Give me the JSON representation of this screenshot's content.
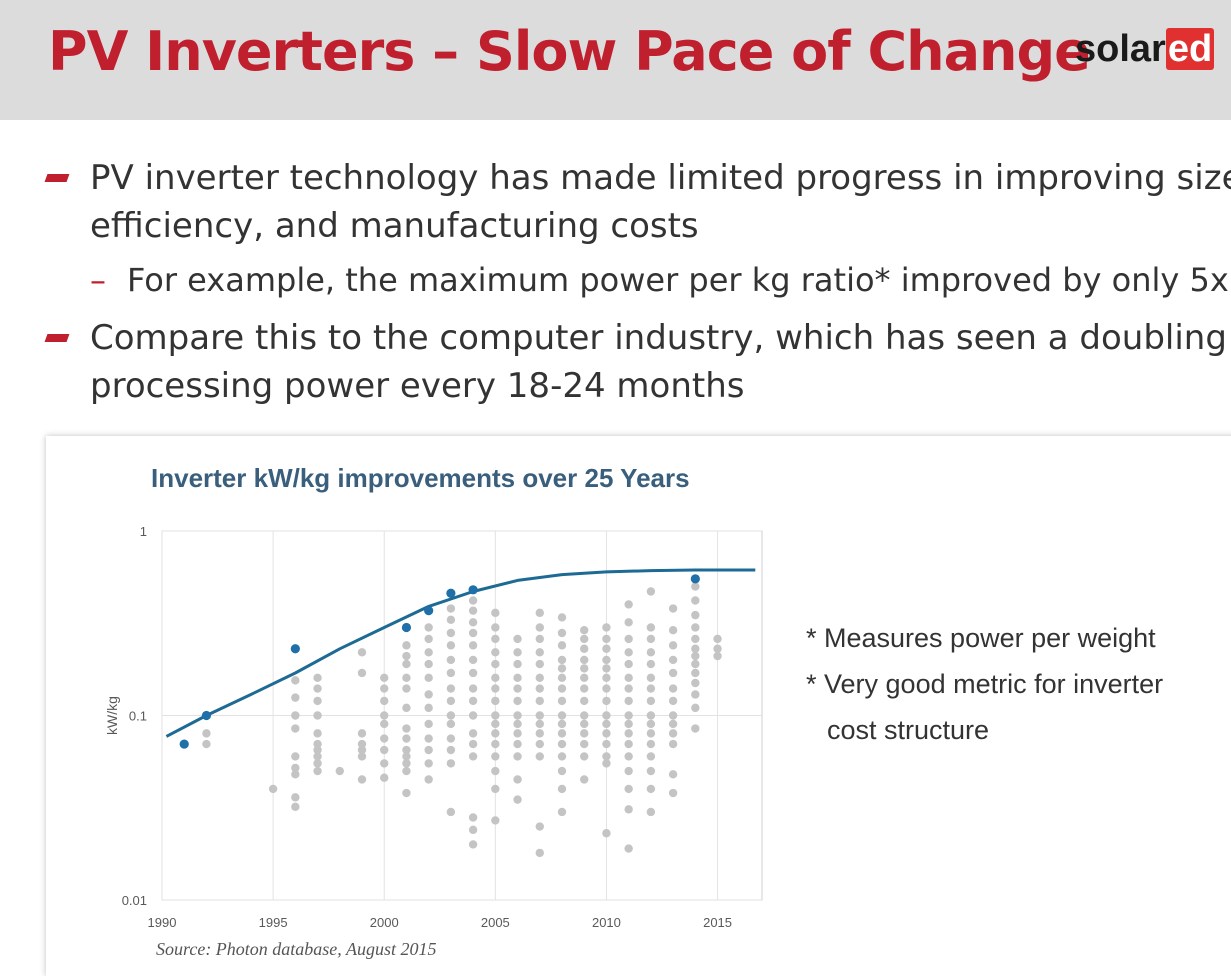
{
  "header": {
    "title": "PV Inverters – Slow Pace of Change",
    "logo_text": "solar",
    "logo_highlight": "ed"
  },
  "bullets": {
    "b1_line1": "PV inverter technology has made limited progress in improving size,",
    "b1_line2": "efficiency, and manufacturing costs",
    "sub_dash": "–",
    "sub": "For example, the maximum power per kg ratio* improved by only 5x",
    "b2_line1": "Compare this to the computer industry, which has seen a doubling in",
    "b2_line2": "processing power every 18-24 months"
  },
  "notes": {
    "n1": "* Measures power per weight",
    "n2": "* Very good metric for inverter",
    "n3": "cost structure"
  },
  "source": "Source: Photon database, August 2015",
  "colors": {
    "title_red": "#c0202e",
    "highlight_blue": "#1f6fa8",
    "curve_blue": "#1d6a94",
    "gray_points": "#c4c4c4"
  },
  "chart_data": {
    "type": "scatter",
    "title": "Inverter kW/kg improvements over 25 Years",
    "xlabel": "",
    "ylabel": "kW/kg",
    "xlim": [
      1990,
      2017
    ],
    "ylim": [
      0.01,
      1
    ],
    "yscale": "log",
    "x_ticks": [
      "1990",
      "1995",
      "2000",
      "2005",
      "2010",
      "2015"
    ],
    "y_ticks": [
      "0.01",
      "0.1",
      "1"
    ],
    "grid": true,
    "series": [
      {
        "role": "maximum",
        "points": [
          [
            1991,
            0.07
          ],
          [
            1992,
            0.1
          ],
          [
            1996,
            0.23
          ],
          [
            2001,
            0.3
          ],
          [
            2002,
            0.37
          ],
          [
            2003,
            0.46
          ],
          [
            2004,
            0.48
          ],
          [
            2014,
            0.55
          ]
        ]
      },
      {
        "role": "trend",
        "x": [
          1990.2,
          1992,
          1994,
          1996,
          1998,
          2000,
          2002,
          2004,
          2006,
          2008,
          2010,
          2012,
          2014,
          2016.7
        ],
        "y": [
          0.077,
          0.1,
          0.13,
          0.17,
          0.23,
          0.3,
          0.39,
          0.47,
          0.54,
          0.58,
          0.6,
          0.61,
          0.615,
          0.615
        ]
      },
      {
        "role": "all models",
        "columns": [
          {
            "x": 1992,
            "ys": [
              0.07,
              0.08
            ]
          },
          {
            "x": 1995,
            "ys": [
              0.04
            ]
          },
          {
            "x": 1996,
            "ys": [
              0.032,
              0.036,
              0.048,
              0.052,
              0.06,
              0.085,
              0.1,
              0.125,
              0.155
            ]
          },
          {
            "x": 1997,
            "ys": [
              0.05,
              0.055,
              0.06,
              0.065,
              0.07,
              0.08,
              0.1,
              0.12,
              0.14,
              0.16
            ]
          },
          {
            "x": 1998,
            "ys": [
              0.05
            ]
          },
          {
            "x": 1999,
            "ys": [
              0.045,
              0.06,
              0.065,
              0.07,
              0.08,
              0.17,
              0.22
            ]
          },
          {
            "x": 2000,
            "ys": [
              0.046,
              0.055,
              0.065,
              0.075,
              0.09,
              0.1,
              0.12,
              0.14,
              0.16
            ]
          },
          {
            "x": 2001,
            "ys": [
              0.038,
              0.05,
              0.055,
              0.06,
              0.065,
              0.075,
              0.085,
              0.11,
              0.14,
              0.16,
              0.19,
              0.21,
              0.24
            ]
          },
          {
            "x": 2002,
            "ys": [
              0.045,
              0.055,
              0.065,
              0.075,
              0.09,
              0.11,
              0.13,
              0.16,
              0.19,
              0.22,
              0.26,
              0.3
            ]
          },
          {
            "x": 2003,
            "ys": [
              0.03,
              0.055,
              0.065,
              0.075,
              0.09,
              0.1,
              0.12,
              0.14,
              0.17,
              0.2,
              0.24,
              0.28,
              0.33,
              0.38
            ]
          },
          {
            "x": 2004,
            "ys": [
              0.02,
              0.024,
              0.028,
              0.06,
              0.07,
              0.08,
              0.1,
              0.12,
              0.14,
              0.17,
              0.2,
              0.24,
              0.28,
              0.32,
              0.37,
              0.42
            ]
          },
          {
            "x": 2005,
            "ys": [
              0.027,
              0.04,
              0.05,
              0.06,
              0.07,
              0.08,
              0.09,
              0.1,
              0.12,
              0.14,
              0.16,
              0.19,
              0.22,
              0.26,
              0.3,
              0.36
            ]
          },
          {
            "x": 2006,
            "ys": [
              0.035,
              0.045,
              0.06,
              0.07,
              0.08,
              0.09,
              0.1,
              0.12,
              0.14,
              0.16,
              0.19,
              0.22,
              0.26
            ]
          },
          {
            "x": 2007,
            "ys": [
              0.018,
              0.025,
              0.06,
              0.07,
              0.08,
              0.09,
              0.1,
              0.12,
              0.14,
              0.16,
              0.19,
              0.22,
              0.26,
              0.3,
              0.36
            ]
          },
          {
            "x": 2008,
            "ys": [
              0.03,
              0.04,
              0.05,
              0.06,
              0.07,
              0.08,
              0.09,
              0.1,
              0.12,
              0.14,
              0.16,
              0.18,
              0.2,
              0.24,
              0.28,
              0.34
            ]
          },
          {
            "x": 2009,
            "ys": [
              0.045,
              0.06,
              0.07,
              0.08,
              0.09,
              0.1,
              0.12,
              0.14,
              0.16,
              0.18,
              0.2,
              0.23,
              0.26,
              0.29
            ]
          },
          {
            "x": 2010,
            "ys": [
              0.023,
              0.055,
              0.06,
              0.07,
              0.08,
              0.09,
              0.1,
              0.12,
              0.14,
              0.16,
              0.18,
              0.2,
              0.23,
              0.26,
              0.3
            ]
          },
          {
            "x": 2011,
            "ys": [
              0.019,
              0.031,
              0.04,
              0.05,
              0.06,
              0.07,
              0.08,
              0.09,
              0.1,
              0.12,
              0.14,
              0.16,
              0.19,
              0.22,
              0.26,
              0.32,
              0.4
            ]
          },
          {
            "x": 2012,
            "ys": [
              0.03,
              0.04,
              0.05,
              0.06,
              0.07,
              0.08,
              0.09,
              0.1,
              0.12,
              0.14,
              0.16,
              0.19,
              0.22,
              0.26,
              0.3,
              0.47
            ]
          },
          {
            "x": 2013,
            "ys": [
              0.038,
              0.048,
              0.07,
              0.08,
              0.09,
              0.1,
              0.12,
              0.14,
              0.17,
              0.2,
              0.24,
              0.29,
              0.38
            ]
          },
          {
            "x": 2014,
            "ys": [
              0.085,
              0.11,
              0.13,
              0.15,
              0.17,
              0.19,
              0.21,
              0.23,
              0.26,
              0.3,
              0.35,
              0.42,
              0.5
            ]
          },
          {
            "x": 2015,
            "ys": [
              0.21,
              0.23,
              0.26
            ]
          }
        ]
      }
    ]
  }
}
